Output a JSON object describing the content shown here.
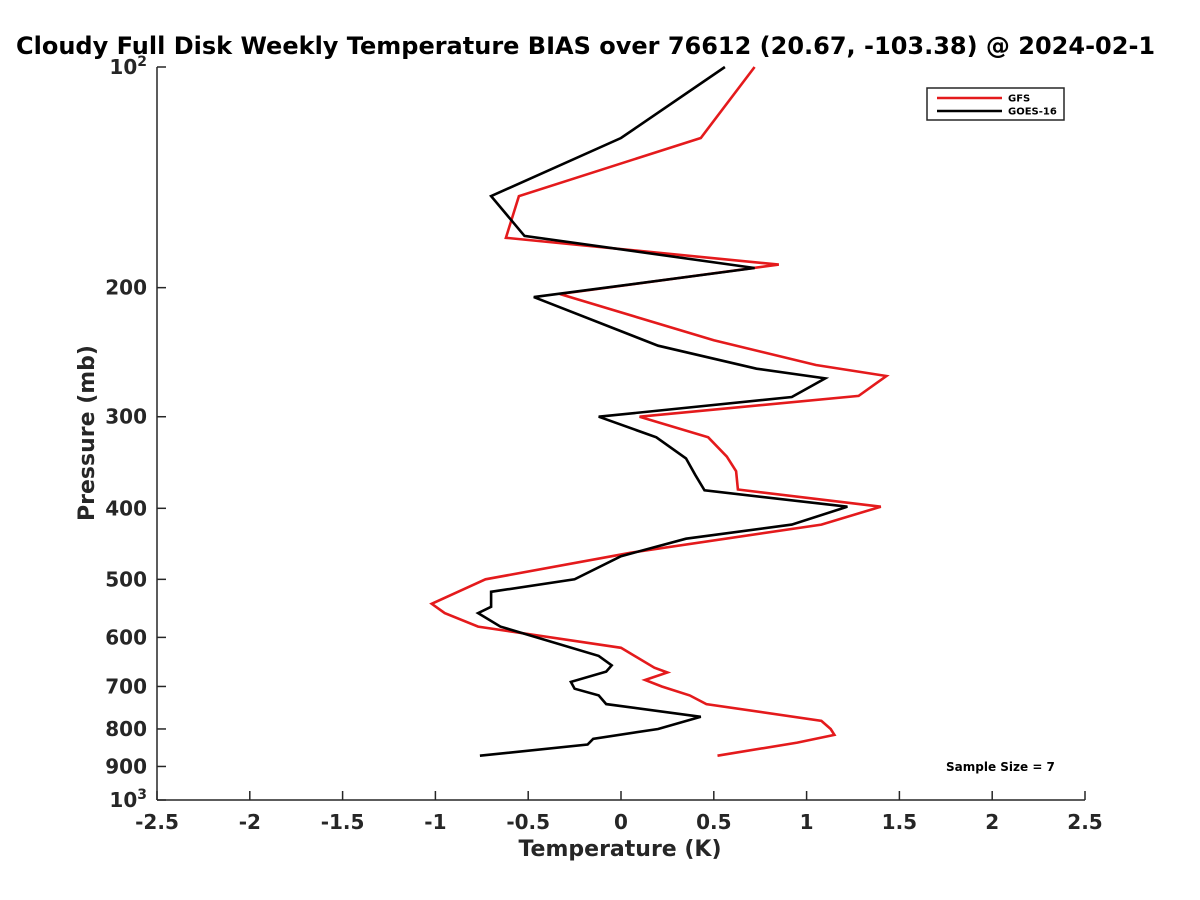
{
  "chart_data": {
    "type": "line",
    "title": "Cloudy Full Disk Weekly Temperature BIAS over 76612 (20.67, -103.38) @ 2024-02-1",
    "xlabel": "Temperature (K)",
    "ylabel": "Pressure (mb)",
    "xlim": [
      -2.5,
      2.5
    ],
    "ylim": [
      100,
      1000
    ],
    "yscale": "log",
    "yreversed": true,
    "xticks": [
      -2.5,
      -2,
      -1.5,
      -1,
      -0.5,
      0,
      0.5,
      1,
      1.5,
      2,
      2.5
    ],
    "xtick_labels": [
      "-2.5",
      "-2",
      "-1.5",
      "-1",
      "-0.5",
      "0",
      "0.5",
      "1",
      "1.5",
      "2",
      "2.5"
    ],
    "yticks": [
      100,
      200,
      300,
      400,
      500,
      600,
      700,
      800,
      900,
      1000
    ],
    "ytick_labels": [
      {
        "base": "10",
        "exp": "2"
      },
      {
        "base": "200",
        "exp": ""
      },
      {
        "base": "300",
        "exp": ""
      },
      {
        "base": "400",
        "exp": ""
      },
      {
        "base": "500",
        "exp": ""
      },
      {
        "base": "600",
        "exp": ""
      },
      {
        "base": "700",
        "exp": ""
      },
      {
        "base": "800",
        "exp": ""
      },
      {
        "base": "900",
        "exp": ""
      },
      {
        "base": "10",
        "exp": "3"
      }
    ],
    "grid": false,
    "legend_position": "top-right",
    "annotation": "Sample Size = 7",
    "series": [
      {
        "name": "GFS",
        "color": "#e41a1c",
        "points": [
          [
            0.72,
            100
          ],
          [
            0.43,
            125
          ],
          [
            -0.55,
            150
          ],
          [
            -0.62,
            171
          ],
          [
            0.85,
            186
          ],
          [
            -0.33,
            204
          ],
          [
            0.5,
            236
          ],
          [
            1.05,
            255
          ],
          [
            1.43,
            264
          ],
          [
            1.28,
            281
          ],
          [
            0.1,
            300
          ],
          [
            0.47,
            320
          ],
          [
            0.57,
            340
          ],
          [
            0.62,
            356
          ],
          [
            0.63,
            377
          ],
          [
            1.4,
            398
          ],
          [
            1.08,
            421
          ],
          [
            0.05,
            460
          ],
          [
            -0.73,
            500
          ],
          [
            -0.85,
            516
          ],
          [
            -1.02,
            540
          ],
          [
            -0.95,
            556
          ],
          [
            -0.77,
            580
          ],
          [
            0.0,
            620
          ],
          [
            0.18,
            660
          ],
          [
            0.25,
            670
          ],
          [
            0.13,
            686
          ],
          [
            0.22,
            700
          ],
          [
            0.37,
            720
          ],
          [
            0.46,
            740
          ],
          [
            1.08,
            780
          ],
          [
            1.13,
            800
          ],
          [
            1.15,
            815
          ],
          [
            0.95,
            835
          ],
          [
            0.52,
            870
          ]
        ]
      },
      {
        "name": "GOES-16",
        "color": "#000000",
        "points": [
          [
            0.56,
            100
          ],
          [
            0.0,
            125
          ],
          [
            -0.7,
            150
          ],
          [
            -0.52,
            170
          ],
          [
            0.72,
            188
          ],
          [
            -0.47,
            206
          ],
          [
            0.2,
            240
          ],
          [
            0.73,
            258
          ],
          [
            1.1,
            266
          ],
          [
            0.92,
            282
          ],
          [
            -0.12,
            300
          ],
          [
            0.19,
            320
          ],
          [
            0.35,
            342
          ],
          [
            0.4,
            360
          ],
          [
            0.45,
            378
          ],
          [
            1.22,
            398
          ],
          [
            0.92,
            421
          ],
          [
            0.35,
            440
          ],
          [
            0.0,
            465
          ],
          [
            -0.25,
            500
          ],
          [
            -0.7,
            520
          ],
          [
            -0.7,
            545
          ],
          [
            -0.77,
            556
          ],
          [
            -0.65,
            580
          ],
          [
            -0.12,
            636
          ],
          [
            -0.05,
            655
          ],
          [
            -0.08,
            668
          ],
          [
            -0.27,
            690
          ],
          [
            -0.25,
            705
          ],
          [
            -0.12,
            720
          ],
          [
            -0.08,
            740
          ],
          [
            0.43,
            770
          ],
          [
            0.2,
            800
          ],
          [
            -0.15,
            825
          ],
          [
            -0.18,
            840
          ],
          [
            -0.76,
            870
          ]
        ]
      }
    ]
  }
}
